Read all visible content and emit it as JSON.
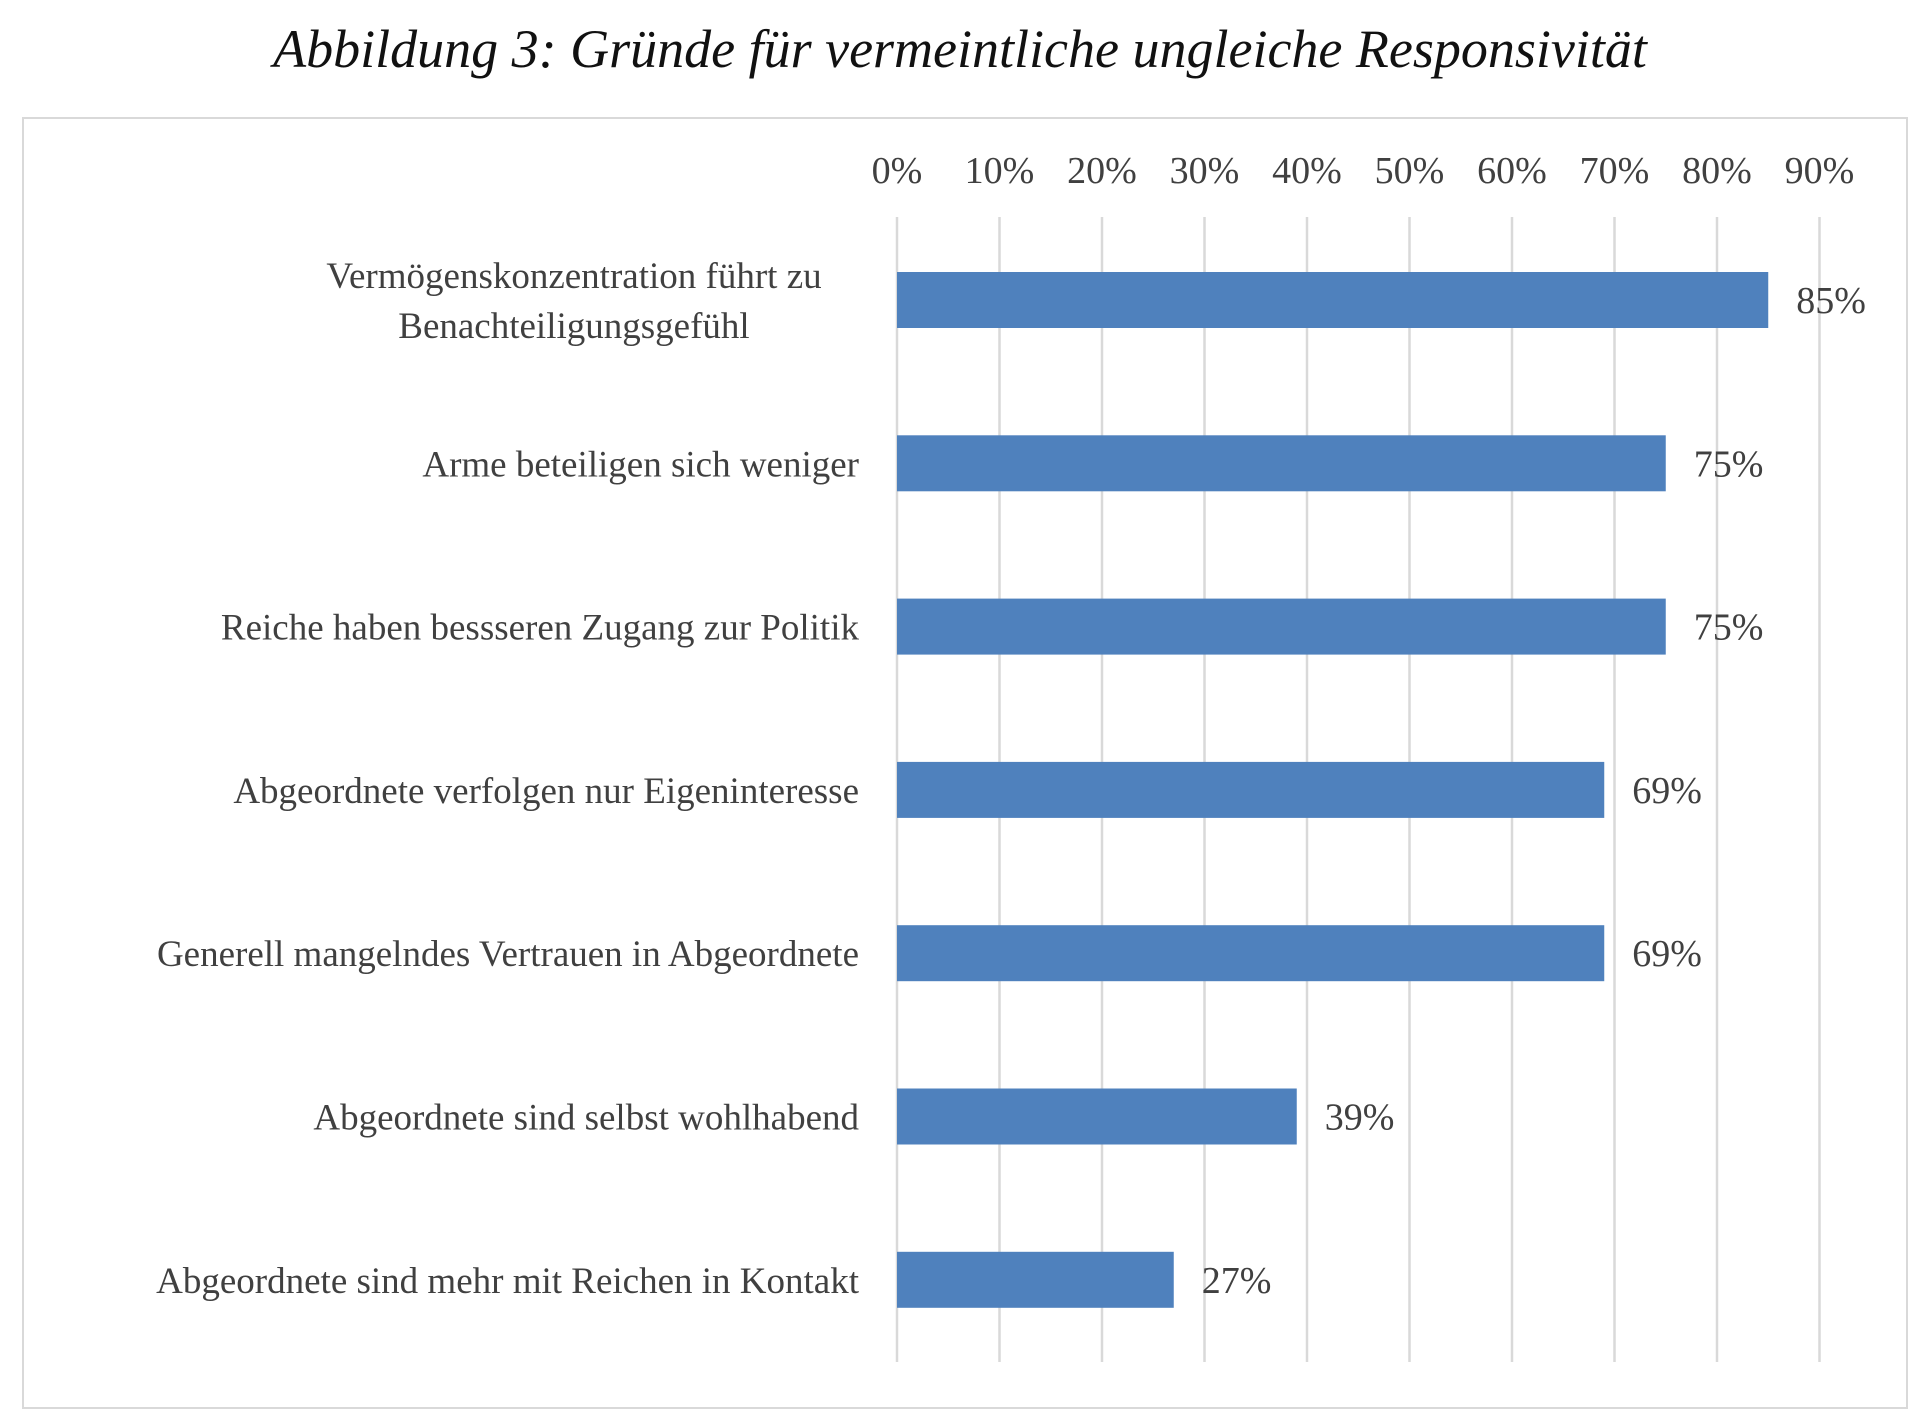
{
  "title": "Abbildung 3: Gründe für vermeintliche ungleiche Responsivität",
  "colors": {
    "bar": "#4f81bd",
    "grid": "#d9d9d9",
    "border": "#d9d9d9",
    "text": "#404040"
  },
  "chart_data": {
    "type": "bar",
    "orientation": "horizontal",
    "xaxis_position": "top",
    "xlim": [
      0,
      90
    ],
    "ticks": [
      0,
      10,
      20,
      30,
      40,
      50,
      60,
      70,
      80,
      90
    ],
    "tick_labels": [
      "0%",
      "10%",
      "20%",
      "30%",
      "40%",
      "50%",
      "60%",
      "70%",
      "80%",
      "90%"
    ],
    "grid": true,
    "legend": "none",
    "categories": [
      [
        "Vermögenskonzentration führt zu",
        "Benachteiligungsgefühl"
      ],
      [
        "Arme beteiligen sich weniger"
      ],
      [
        "Reiche haben bessseren Zugang zur Politik"
      ],
      [
        "Abgeordnete verfolgen nur Eigeninteresse"
      ],
      [
        "Generell mangelndes Vertrauen in Abgeordnete"
      ],
      [
        "Abgeordnete sind selbst wohlhabend"
      ],
      [
        "Abgeordnete sind mehr mit Reichen in Kontakt"
      ]
    ],
    "values": [
      85,
      75,
      75,
      69,
      69,
      39,
      27
    ],
    "value_labels": [
      "85%",
      "75%",
      "75%",
      "69%",
      "69%",
      "39%",
      "27%"
    ]
  }
}
